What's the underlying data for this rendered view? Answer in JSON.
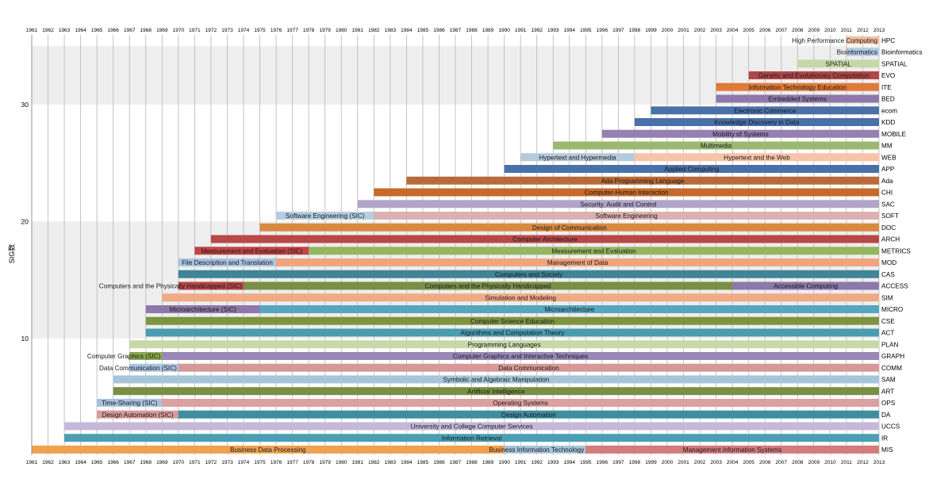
{
  "chart_data": {
    "type": "bar",
    "orientation": "horizontal-timeline",
    "x_years": [
      1961,
      1962,
      1963,
      1964,
      1965,
      1966,
      1967,
      1968,
      1969,
      1970,
      1971,
      1972,
      1973,
      1974,
      1975,
      1976,
      1977,
      1978,
      1979,
      1980,
      1981,
      1982,
      1983,
      1984,
      1985,
      1986,
      1987,
      1988,
      1989,
      1990,
      1991,
      1992,
      1993,
      1994,
      1995,
      1996,
      1997,
      1998,
      1999,
      2000,
      2001,
      2002,
      2003,
      2004,
      2005,
      2006,
      2007,
      2008,
      2009,
      2010,
      2011,
      2012,
      2013
    ],
    "xlim": [
      1961,
      2013
    ],
    "ylabel": "SIG数",
    "ylim": [
      0,
      35
    ],
    "y_ticks": [
      10,
      20,
      30
    ],
    "shaded_bands": [
      [
        10,
        20
      ],
      [
        30,
        35
      ]
    ],
    "rows": [
      {
        "code": "MIS",
        "segments": [
          {
            "start": 1961,
            "end": 1990,
            "label": "Business Data Processing",
            "color": "#f0a150"
          },
          {
            "start": 1990,
            "end": 1995,
            "label": "Business Information Technology",
            "color": "#a8c4dc"
          },
          {
            "start": 1995,
            "end": 2013,
            "label": "Management Information Systems",
            "color": "#d47b7b"
          }
        ]
      },
      {
        "code": "IR",
        "segments": [
          {
            "start": 1963,
            "end": 2013,
            "label": "Information Retrieval",
            "color": "#4b9fb5"
          }
        ]
      },
      {
        "code": "UCCS",
        "segments": [
          {
            "start": 1963,
            "end": 2013,
            "label": "University and College Computer Services",
            "color": "#c6b8d8"
          }
        ]
      },
      {
        "code": "DA",
        "segments": [
          {
            "start": 1965,
            "end": 1970,
            "label": "Design Automation (SIC)",
            "color": "#d89a9a"
          },
          {
            "start": 1970,
            "end": 2013,
            "label": "Design Automation",
            "color": "#3f8ea0"
          }
        ]
      },
      {
        "code": "OPS",
        "segments": [
          {
            "start": 1965,
            "end": 1969,
            "label": "Time-Sharing (SIC)",
            "color": "#a6c2df"
          },
          {
            "start": 1969,
            "end": 2013,
            "label": "Operating Systems",
            "color": "#dba0a0"
          }
        ]
      },
      {
        "code": "ART",
        "segments": [
          {
            "start": 1966,
            "end": 2013,
            "label": "Artificial Intelligence",
            "color": "#7a8e45"
          }
        ]
      },
      {
        "code": "SAM",
        "segments": [
          {
            "start": 1966,
            "end": 2013,
            "label": "Symbolic and Algebraic Manipulation",
            "color": "#a7c5d8"
          }
        ]
      },
      {
        "code": "COMM",
        "segments": [
          {
            "start": 1967,
            "end": 1970,
            "label": "Data Communication (SIC)",
            "color": "#a8c4e0"
          },
          {
            "start": 1970,
            "end": 2013,
            "label": "Data Communication",
            "color": "#d69898"
          }
        ]
      },
      {
        "code": "GRAPH",
        "segments": [
          {
            "start": 1967,
            "end": 1969,
            "label": "Computer Graphics (SIC)",
            "color": "#8aa850"
          },
          {
            "start": 1969,
            "end": 2013,
            "label": "Computer Graphics and Interactive Techniques",
            "color": "#9a88b8"
          }
        ]
      },
      {
        "code": "PLAN",
        "segments": [
          {
            "start": 1967,
            "end": 2013,
            "label": "Programming Languages",
            "color": "#c6d8a8"
          }
        ]
      },
      {
        "code": "ACT",
        "segments": [
          {
            "start": 1968,
            "end": 2013,
            "label": "Algorithms and Computation Theory",
            "color": "#4a9cb0"
          }
        ]
      },
      {
        "code": "CSE",
        "segments": [
          {
            "start": 1968,
            "end": 2013,
            "label": "Computer Science Education",
            "color": "#7e9440"
          }
        ]
      },
      {
        "code": "MICRO",
        "segments": [
          {
            "start": 1968,
            "end": 1975,
            "label": "Microarchitecture (SIC)",
            "color": "#8e78ab"
          },
          {
            "start": 1975,
            "end": 2013,
            "label": "Microarchitecture",
            "color": "#55a6be"
          }
        ]
      },
      {
        "code": "SIM",
        "segments": [
          {
            "start": 1969,
            "end": 2013,
            "label": "Simulation and Modeling",
            "color": "#f0aa86"
          }
        ]
      },
      {
        "code": "ACCESS",
        "segments": [
          {
            "start": 1970,
            "end": 1974,
            "label": "Computers and the Physically Handicapped (SIC)",
            "color": "#b84545"
          },
          {
            "start": 1974,
            "end": 2004,
            "label": "Computers and the Physically Handicapped",
            "color": "#7a8e45"
          },
          {
            "start": 2004,
            "end": 2013,
            "label": "Accessible Computing",
            "color": "#8c78aa"
          }
        ]
      },
      {
        "code": "CAS",
        "segments": [
          {
            "start": 1970,
            "end": 2013,
            "label": "Computers and Society",
            "color": "#3e8595"
          }
        ]
      },
      {
        "code": "MOD",
        "segments": [
          {
            "start": 1970,
            "end": 1976,
            "label": "File Description and Translation",
            "color": "#a8c4e0"
          },
          {
            "start": 1976,
            "end": 2013,
            "label": "Management of Data",
            "color": "#f0a57e"
          }
        ]
      },
      {
        "code": "METRICS",
        "segments": [
          {
            "start": 1971,
            "end": 1978,
            "label": "Measurement and Evaluation (SIC)",
            "color": "#c04545"
          },
          {
            "start": 1978,
            "end": 2013,
            "label": "Measurement and Evaluation",
            "color": "#95b560"
          }
        ]
      },
      {
        "code": "ARCH",
        "segments": [
          {
            "start": 1972,
            "end": 2013,
            "label": "Computer Architecture",
            "color": "#b84848"
          }
        ]
      },
      {
        "code": "DOC",
        "segments": [
          {
            "start": 1975,
            "end": 2013,
            "label": "Design of Communication",
            "color": "#d98a40"
          }
        ]
      },
      {
        "code": "SOFT",
        "segments": [
          {
            "start": 1976,
            "end": 1982,
            "label": "Software Engineering (SIC)",
            "color": "#b5cde0"
          },
          {
            "start": 1982,
            "end": 2013,
            "label": "Software Engineering",
            "color": "#dcb0b0"
          }
        ]
      },
      {
        "code": "SAC",
        "segments": [
          {
            "start": 1981,
            "end": 2013,
            "label": "Security, Audit and Control",
            "color": "#b0a4c8"
          }
        ]
      },
      {
        "code": "CHI",
        "segments": [
          {
            "start": 1982,
            "end": 2013,
            "label": "Computer-Human Interaction",
            "color": "#c56a2a"
          }
        ]
      },
      {
        "code": "Ada",
        "segments": [
          {
            "start": 1984,
            "end": 2013,
            "label": "Ada Programming Language",
            "color": "#b86a38"
          }
        ]
      },
      {
        "code": "APP",
        "segments": [
          {
            "start": 1990,
            "end": 2013,
            "label": "Applied Computing",
            "color": "#4a70aa"
          }
        ]
      },
      {
        "code": "WEB",
        "segments": [
          {
            "start": 1991,
            "end": 1998,
            "label": "Hypertext and Hypermedia",
            "color": "#b5cbdb"
          },
          {
            "start": 1998,
            "end": 2013,
            "label": "Hypertext and the Web",
            "color": "#f7c4a8"
          }
        ]
      },
      {
        "code": "MM",
        "segments": [
          {
            "start": 1993,
            "end": 2013,
            "label": "Multimedia",
            "color": "#9ab870"
          }
        ]
      },
      {
        "code": "MOBILE",
        "segments": [
          {
            "start": 1996,
            "end": 2013,
            "label": "Mobility of Systems",
            "color": "#9580b0"
          }
        ]
      },
      {
        "code": "KDD",
        "segments": [
          {
            "start": 1998,
            "end": 2013,
            "label": "Knowledge Discovery in Data",
            "color": "#4a70aa"
          }
        ]
      },
      {
        "code": "ecom",
        "segments": [
          {
            "start": 1999,
            "end": 2013,
            "label": "Electronic Commerce",
            "color": "#4a70aa"
          }
        ]
      },
      {
        "code": "BED",
        "segments": [
          {
            "start": 2003,
            "end": 2013,
            "label": "Embedded Systems",
            "color": "#8e78ab"
          }
        ]
      },
      {
        "code": "ITE",
        "segments": [
          {
            "start": 2003,
            "end": 2013,
            "label": "Information Technology Education",
            "color": "#e07a3a"
          }
        ]
      },
      {
        "code": "EVO",
        "segments": [
          {
            "start": 2005,
            "end": 2013,
            "label": "Genetic and Evolutionary Computation",
            "color": "#b04848"
          }
        ]
      },
      {
        "code": "SPATIAL",
        "segments": [
          {
            "start": 2008,
            "end": 2013,
            "label": "SPATIAL",
            "color": "#c6d8a8"
          }
        ]
      },
      {
        "code": "Bioinformatics",
        "segments": [
          {
            "start": 2011,
            "end": 2013,
            "label": "Bioinformatics",
            "color": "#b0c8e0"
          }
        ]
      },
      {
        "code": "HPC",
        "segments": [
          {
            "start": 2011,
            "end": 2013,
            "label": "High Performance Computing",
            "color": "#f2c0a0"
          }
        ]
      }
    ]
  }
}
